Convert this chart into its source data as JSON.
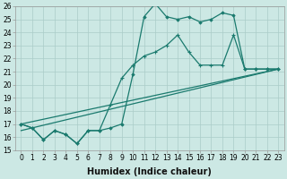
{
  "xlabel": "Humidex (Indice chaleur)",
  "xlim": [
    -0.5,
    23.5
  ],
  "ylim": [
    15,
    26
  ],
  "background_color": "#cce8e4",
  "grid_color": "#b0d4cf",
  "line_color": "#1a7a6e",
  "line1_x": [
    0,
    1,
    2,
    3,
    4,
    5,
    6,
    7,
    8,
    9,
    10,
    11,
    12,
    13,
    14,
    15,
    16,
    17,
    18,
    19,
    20,
    21,
    22,
    23
  ],
  "line1_y": [
    17.0,
    16.7,
    15.8,
    16.5,
    16.2,
    15.5,
    16.5,
    16.5,
    16.7,
    17.0,
    20.8,
    25.2,
    26.2,
    25.2,
    25.0,
    25.2,
    24.8,
    25.0,
    25.5,
    25.3,
    21.2,
    21.2,
    21.2,
    21.2
  ],
  "line2_x": [
    0,
    1,
    2,
    3,
    4,
    5,
    6,
    7,
    8,
    9,
    10,
    11,
    12,
    13,
    14,
    15,
    16,
    17,
    18,
    19,
    20,
    21,
    22,
    23
  ],
  "line2_y": [
    17.0,
    16.7,
    15.8,
    16.5,
    16.2,
    15.5,
    16.5,
    16.5,
    18.5,
    20.5,
    21.5,
    22.2,
    22.5,
    23.0,
    23.8,
    22.5,
    21.5,
    21.5,
    21.5,
    23.8,
    21.2,
    21.2,
    21.2,
    21.2
  ],
  "line3_x": [
    0,
    23
  ],
  "line3_y": [
    17.0,
    21.2
  ],
  "line4_x": [
    0,
    23
  ],
  "line4_y": [
    16.5,
    21.2
  ],
  "xtick_fontsize": 5.5,
  "ytick_fontsize": 5.5,
  "xlabel_fontsize": 7
}
